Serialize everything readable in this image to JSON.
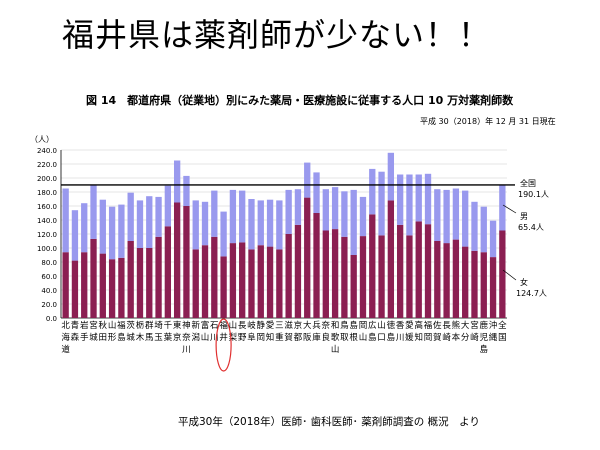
{
  "slide": {
    "title": "福井県は薬剤師が少ない！！",
    "source": "平成30年（2018年）医師･ 歯科医師･ 薬剤師調査の 概況　より"
  },
  "figure": {
    "title": "図 14　都道府県（従業地）別にみた薬局・医療施設に従事する人口 10 万対薬剤師数",
    "as_of": "平成 30（2018）年 12 月 31 日現在",
    "unit_label": "（人）",
    "national_label": "全国",
    "national_value_label": "190.1人",
    "male_label": "男",
    "male_value_label": "65.4人",
    "female_label": "女",
    "female_value_label": "124.7人"
  },
  "chart_data": {
    "type": "bar",
    "stacked": true,
    "ylim": [
      0,
      240
    ],
    "yticks": [
      "0.0",
      "20.0",
      "40.0",
      "60.0",
      "80.0",
      "100.0",
      "120.0",
      "140.0",
      "160.0",
      "180.0",
      "200.0",
      "220.0",
      "240.0"
    ],
    "categories": [
      [
        "北",
        "海",
        "道"
      ],
      [
        "青",
        "森"
      ],
      [
        "岩",
        "手"
      ],
      [
        "宮",
        "城"
      ],
      [
        "秋",
        "田"
      ],
      [
        "山",
        "形"
      ],
      [
        "福",
        "島"
      ],
      [
        "茨",
        "城"
      ],
      [
        "栃",
        "木"
      ],
      [
        "群",
        "馬"
      ],
      [
        "埼",
        "玉"
      ],
      [
        "千",
        "葉"
      ],
      [
        "東",
        "京"
      ],
      [
        "神",
        "奈",
        "川"
      ],
      [
        "新",
        "潟"
      ],
      [
        "富",
        "山"
      ],
      [
        "石",
        "川"
      ],
      [
        "福",
        "井"
      ],
      [
        "山",
        "梨"
      ],
      [
        "長",
        "野"
      ],
      [
        "岐",
        "阜"
      ],
      [
        "静",
        "岡"
      ],
      [
        "愛",
        "知"
      ],
      [
        "三",
        "重"
      ],
      [
        "滋",
        "賀"
      ],
      [
        "京",
        "都"
      ],
      [
        "大",
        "阪"
      ],
      [
        "兵",
        "庫"
      ],
      [
        "奈",
        "良"
      ],
      [
        "和",
        "歌",
        "山"
      ],
      [
        "鳥",
        "取"
      ],
      [
        "島",
        "根"
      ],
      [
        "岡",
        "山"
      ],
      [
        "広",
        "島"
      ],
      [
        "山",
        "口"
      ],
      [
        "徳",
        "島"
      ],
      [
        "香",
        "川"
      ],
      [
        "愛",
        "媛"
      ],
      [
        "高",
        "知"
      ],
      [
        "福",
        "岡"
      ],
      [
        "佐",
        "賀"
      ],
      [
        "長",
        "崎"
      ],
      [
        "熊",
        "本"
      ],
      [
        "大",
        "分"
      ],
      [
        "宮",
        "崎"
      ],
      [
        "鹿",
        "児",
        "島"
      ],
      [
        "沖",
        "縄"
      ],
      [
        "全",
        "国"
      ]
    ],
    "series": [
      {
        "name": "女",
        "color": "#8b1f52",
        "values": [
          94,
          82,
          94,
          113,
          92,
          84,
          86,
          110,
          100,
          100,
          116,
          131,
          165,
          160,
          98,
          104,
          116,
          88,
          107,
          108,
          98,
          104,
          102,
          98,
          120,
          133,
          172,
          150,
          125,
          127,
          116,
          90,
          117,
          148,
          118,
          168,
          133,
          118,
          138,
          134,
          110,
          107,
          112,
          102,
          96,
          94,
          87,
          125
        ]
      },
      {
        "name": "男",
        "color": "#9999ee",
        "values": [
          91,
          72,
          70,
          77,
          77,
          75,
          76,
          69,
          68,
          74,
          57,
          58,
          60,
          43,
          70,
          62,
          66,
          64,
          76,
          74,
          72,
          64,
          67,
          70,
          63,
          51,
          50,
          58,
          59,
          60,
          65,
          93,
          56,
          65,
          91,
          68,
          72,
          87,
          67,
          72,
          74,
          76,
          73,
          80,
          70,
          65,
          52,
          65
        ]
      }
    ],
    "national_total": 190.1,
    "national_male": 65.4,
    "national_female": 124.7,
    "highlight_category": "福井"
  }
}
